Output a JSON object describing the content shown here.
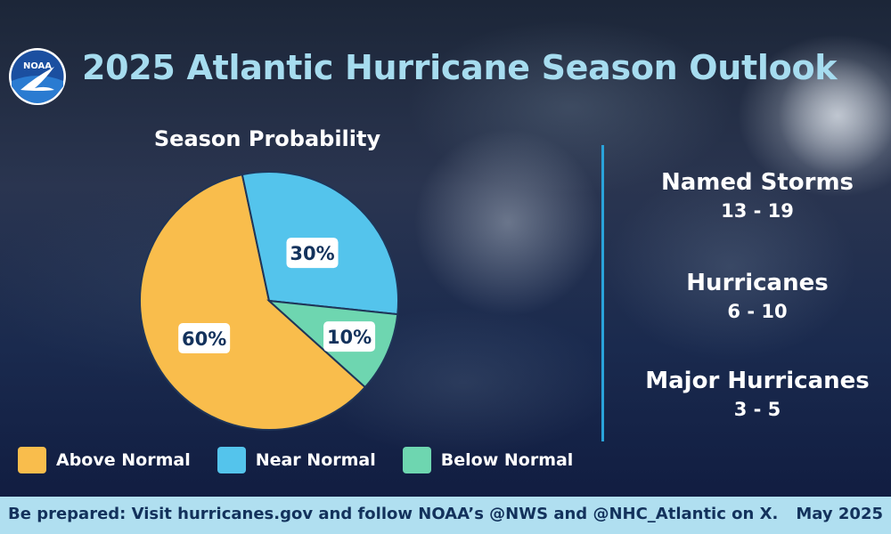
{
  "header": {
    "title": "2025 Atlantic Hurricane Season Outlook",
    "logo_text": "NOAA"
  },
  "chart_data": {
    "type": "pie",
    "title": "Season Probability",
    "categories": [
      "Above Normal",
      "Near Normal",
      "Below Normal"
    ],
    "values": [
      60,
      30,
      10
    ],
    "value_labels": [
      "60%",
      "30%",
      "10%"
    ],
    "colors": [
      "#f9bd4c",
      "#54c4ec",
      "#6ed6b0"
    ],
    "legend_placement": "bottom"
  },
  "stats": [
    {
      "label": "Named Storms",
      "value": "13 - 19"
    },
    {
      "label": "Hurricanes",
      "value": "6 - 10"
    },
    {
      "label": "Major Hurricanes",
      "value": "3 - 5"
    }
  ],
  "footer": {
    "text": "Be prepared: Visit hurricanes.gov and follow NOAA’s @NWS and @NHC_Atlantic on X.",
    "date": "May 2025"
  },
  "colors": {
    "title": "#a6dcef",
    "divider": "#2aa3da",
    "footer_bg": "#b0dff0",
    "footer_text": "#13325c"
  }
}
